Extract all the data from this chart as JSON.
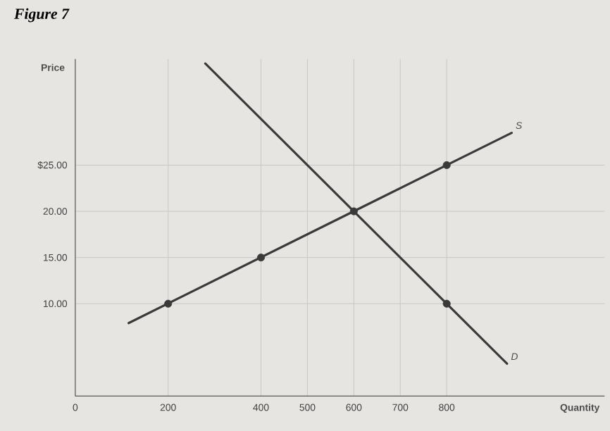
{
  "chart_data": {
    "type": "line",
    "title": "Figure 7",
    "xlabel": "Quantity",
    "ylabel": "Price",
    "xlim": [
      0,
      1140
    ],
    "ylim": [
      0,
      36.5
    ],
    "xticks": [
      0,
      200,
      400,
      500,
      600,
      700,
      800
    ],
    "yticks": [
      {
        "value": 10,
        "label": "10.00"
      },
      {
        "value": 15,
        "label": "15.00"
      },
      {
        "value": 20,
        "label": "20.00"
      },
      {
        "value": 25,
        "label": "$25.00"
      }
    ],
    "grid": true,
    "series": [
      {
        "name": "S",
        "color": "#3a3a3a",
        "marker": "none",
        "x": [
          115,
          940
        ],
        "values": [
          7.9,
          28.5
        ]
      },
      {
        "name": "D",
        "color": "#3a3a3a",
        "marker": "none",
        "x": [
          280,
          930
        ],
        "values": [
          36,
          3.5
        ]
      },
      {
        "type": "scatter",
        "color": "#3a3a3a",
        "marker": "circle",
        "x": [
          200,
          400,
          600,
          800,
          800
        ],
        "values": [
          10,
          15,
          20,
          25,
          10
        ]
      }
    ]
  }
}
